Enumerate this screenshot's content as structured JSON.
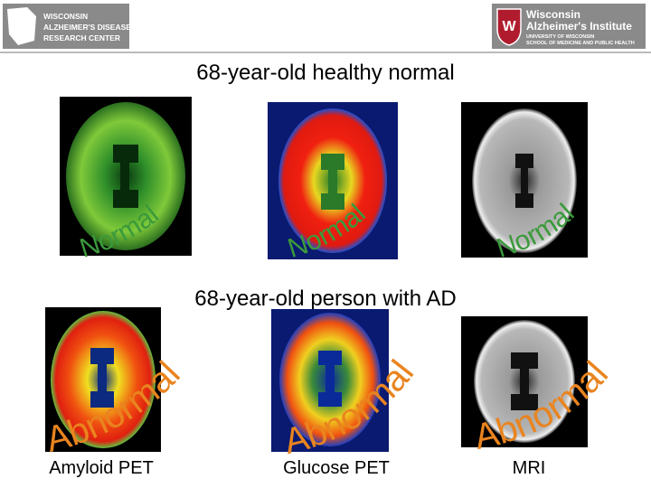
{
  "header": {
    "left_logo": [
      "WISCONSIN",
      "ALZHEIMER'S DISEASE",
      "RESEARCH CENTER"
    ],
    "right_logo": {
      "title": [
        "Wisconsin",
        "Alzheimer's Institute"
      ],
      "subtitle": [
        "UNIVERSITY OF WISCONSIN",
        "SCHOOL OF MEDICINE AND PUBLIC HEALTH"
      ]
    }
  },
  "sections": [
    {
      "heading": "68-year-old healthy normal",
      "labels": [
        "Normal",
        "Normal",
        "Normal"
      ]
    },
    {
      "heading": "68-year-old person with AD",
      "labels": [
        "Abnormal",
        "Abnormal",
        "Abnormal"
      ]
    }
  ],
  "captions": [
    "Amyloid PET",
    "Glucose PET",
    "MRI"
  ]
}
